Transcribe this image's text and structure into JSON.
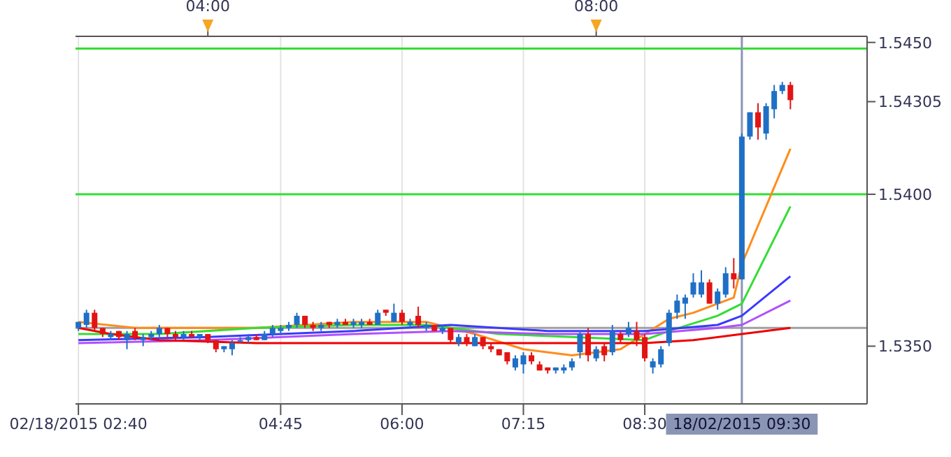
{
  "chart_data": {
    "type": "candlestick",
    "x": [
      2.6667,
      2.75,
      2.8333,
      2.9167,
      3,
      3.0833,
      3.1667,
      3.25,
      3.3333,
      3.4167,
      3.5,
      3.5833,
      3.6667,
      3.75,
      3.8333,
      3.9167,
      4,
      4.0833,
      4.1667,
      4.25,
      4.3333,
      4.4167,
      4.5,
      4.5833,
      4.6667,
      4.75,
      4.8333,
      4.9167,
      5,
      5.0833,
      5.1667,
      5.25,
      5.3333,
      5.4167,
      5.5,
      5.5833,
      5.6667,
      5.75,
      5.8333,
      5.9167,
      6,
      6.0833,
      6.1667,
      6.25,
      6.3333,
      6.4167,
      6.5,
      6.5833,
      6.6667,
      6.75,
      6.8333,
      6.9167,
      7,
      7.0833,
      7.1667,
      7.25,
      7.3333,
      7.4167,
      7.5,
      7.5833,
      7.6667,
      7.75,
      7.8333,
      7.9167,
      8,
      8.0833,
      8.1667,
      8.25,
      8.3333,
      8.4167,
      8.5,
      8.5833,
      8.6667,
      8.75,
      8.8333,
      8.9167,
      9,
      9.0833,
      9.1667,
      9.25,
      9.3333,
      9.4167,
      9.5,
      9.5833,
      9.6667,
      9.75,
      9.8333,
      9.9167,
      10
    ],
    "ohlc": [
      [
        1.5356,
        1.5358,
        1.5355,
        1.5358
      ],
      [
        1.5357,
        1.5362,
        1.5356,
        1.5361
      ],
      [
        1.5361,
        1.5362,
        1.5355,
        1.5356
      ],
      [
        1.5356,
        1.5356,
        1.5353,
        1.5354
      ],
      [
        1.5353,
        1.5355,
        1.5352,
        1.5354
      ],
      [
        1.5355,
        1.5355,
        1.5352,
        1.5353
      ],
      [
        1.5352,
        1.5355,
        1.5349,
        1.5354
      ],
      [
        1.5355,
        1.5356,
        1.5352,
        1.5353
      ],
      [
        1.5352,
        1.5354,
        1.535,
        1.5353
      ],
      [
        1.5353,
        1.5355,
        1.5352,
        1.5354
      ],
      [
        1.5354,
        1.5357,
        1.5353,
        1.5356
      ],
      [
        1.5356,
        1.5356,
        1.5353,
        1.5354
      ],
      [
        1.5354,
        1.5355,
        1.5352,
        1.5353
      ],
      [
        1.5353,
        1.5355,
        1.5352,
        1.5354
      ],
      [
        1.5354,
        1.5355,
        1.5353,
        1.5353
      ],
      [
        1.5353,
        1.5354,
        1.5352,
        1.5354
      ],
      [
        1.5354,
        1.5354,
        1.5351,
        1.5352
      ],
      [
        1.5352,
        1.5352,
        1.5348,
        1.5349
      ],
      [
        1.5349,
        1.535,
        1.5348,
        1.535
      ],
      [
        1.5349,
        1.5352,
        1.5347,
        1.5351
      ],
      [
        1.5352,
        1.5353,
        1.5351,
        1.5352
      ],
      [
        1.5352,
        1.5354,
        1.5351,
        1.5353
      ],
      [
        1.5353,
        1.5354,
        1.5352,
        1.5352
      ],
      [
        1.5352,
        1.5355,
        1.5352,
        1.5354
      ],
      [
        1.5354,
        1.5357,
        1.5353,
        1.5356
      ],
      [
        1.5355,
        1.5357,
        1.5354,
        1.5356
      ],
      [
        1.5356,
        1.5358,
        1.5355,
        1.5357
      ],
      [
        1.5357,
        1.5361,
        1.5356,
        1.536
      ],
      [
        1.536,
        1.536,
        1.5356,
        1.5357
      ],
      [
        1.5357,
        1.5358,
        1.5355,
        1.5356
      ],
      [
        1.5356,
        1.5358,
        1.5355,
        1.5357
      ],
      [
        1.5358,
        1.5358,
        1.5356,
        1.5357
      ],
      [
        1.5357,
        1.5359,
        1.5356,
        1.5358
      ],
      [
        1.5358,
        1.5359,
        1.5357,
        1.5357
      ],
      [
        1.5357,
        1.5359,
        1.5356,
        1.5358
      ],
      [
        1.5357,
        1.5359,
        1.5356,
        1.5358
      ],
      [
        1.5358,
        1.5359,
        1.5357,
        1.5357
      ],
      [
        1.5357,
        1.5362,
        1.5357,
        1.5361
      ],
      [
        1.5362,
        1.5362,
        1.536,
        1.5361
      ],
      [
        1.5358,
        1.5364,
        1.5358,
        1.5361
      ],
      [
        1.5361,
        1.5362,
        1.5357,
        1.5358
      ],
      [
        1.5357,
        1.5359,
        1.5356,
        1.5358
      ],
      [
        1.536,
        1.5363,
        1.5356,
        1.5357
      ],
      [
        1.5356,
        1.5358,
        1.5355,
        1.5357
      ],
      [
        1.5357,
        1.5357,
        1.5355,
        1.5355
      ],
      [
        1.5355,
        1.5357,
        1.5354,
        1.5356
      ],
      [
        1.5356,
        1.5356,
        1.5351,
        1.5352
      ],
      [
        1.5351,
        1.5354,
        1.535,
        1.5353
      ],
      [
        1.5353,
        1.5354,
        1.535,
        1.5351
      ],
      [
        1.535,
        1.5354,
        1.535,
        1.5353
      ],
      [
        1.5353,
        1.5353,
        1.5349,
        1.535
      ],
      [
        1.535,
        1.5351,
        1.5348,
        1.5349
      ],
      [
        1.5349,
        1.5349,
        1.5347,
        1.5347
      ],
      [
        1.5348,
        1.5348,
        1.5344,
        1.5345
      ],
      [
        1.5343,
        1.5347,
        1.5342,
        1.5346
      ],
      [
        1.5344,
        1.5348,
        1.5341,
        1.5347
      ],
      [
        1.5347,
        1.5348,
        1.5344,
        1.5345
      ],
      [
        1.5344,
        1.5345,
        1.5342,
        1.5342
      ],
      [
        1.5343,
        1.5343,
        1.5341,
        1.5342
      ],
      [
        1.5342,
        1.5343,
        1.5341,
        1.5343
      ],
      [
        1.5342,
        1.5344,
        1.5341,
        1.5343
      ],
      [
        1.5343,
        1.5346,
        1.5342,
        1.5345
      ],
      [
        1.5348,
        1.5355,
        1.5346,
        1.5354
      ],
      [
        1.5354,
        1.5356,
        1.5345,
        1.5347
      ],
      [
        1.5346,
        1.535,
        1.5345,
        1.5349
      ],
      [
        1.535,
        1.5351,
        1.5345,
        1.5347
      ],
      [
        1.5348,
        1.5357,
        1.5347,
        1.5355
      ],
      [
        1.5354,
        1.5355,
        1.5351,
        1.5352
      ],
      [
        1.5354,
        1.5358,
        1.5353,
        1.5356
      ],
      [
        1.5355,
        1.5358,
        1.535,
        1.5352
      ],
      [
        1.5353,
        1.5354,
        1.5345,
        1.5346
      ],
      [
        1.5343,
        1.5346,
        1.5341,
        1.5345
      ],
      [
        1.5344,
        1.535,
        1.5343,
        1.5349
      ],
      [
        1.5351,
        1.5362,
        1.535,
        1.5361
      ],
      [
        1.5361,
        1.5367,
        1.5359,
        1.5365
      ],
      [
        1.5364,
        1.5367,
        1.5359,
        1.5366
      ],
      [
        1.5367,
        1.5374,
        1.5366,
        1.5371
      ],
      [
        1.5367,
        1.5375,
        1.5366,
        1.5371
      ],
      [
        1.5371,
        1.5372,
        1.5364,
        1.5364
      ],
      [
        1.5364,
        1.5369,
        1.5362,
        1.5368
      ],
      [
        1.5367,
        1.5376,
        1.5366,
        1.5374
      ],
      [
        1.5374,
        1.5379,
        1.5369,
        1.5372
      ],
      [
        1.5372,
        1.542,
        1.5372,
        1.5419
      ],
      [
        1.5419,
        1.5427,
        1.5418,
        1.5427
      ],
      [
        1.5427,
        1.543,
        1.5418,
        1.5422
      ],
      [
        1.542,
        1.543,
        1.5418,
        1.5429
      ],
      [
        1.5428,
        1.5436,
        1.5425,
        1.5434
      ],
      [
        1.5434,
        1.5437,
        1.5433,
        1.5436
      ],
      [
        1.5436,
        1.5437,
        1.5428,
        1.5431
      ]
    ],
    "series": [
      {
        "type": "line",
        "color": "#ff8c1a",
        "x": [
          2.6667,
          3.25,
          4.5,
          5.5,
          6.25,
          6.75,
          7.25,
          7.75,
          8.25,
          8.5,
          8.75,
          9,
          9.4167,
          9.5,
          10
        ],
        "values": [
          1.5358,
          1.5356,
          1.5356,
          1.5358,
          1.5358,
          1.5354,
          1.5349,
          1.5347,
          1.5349,
          1.5354,
          1.5359,
          1.5361,
          1.5366,
          1.5377,
          1.5415
        ]
      },
      {
        "type": "line",
        "color": "#33dd33",
        "x": [
          2.6667,
          3.5,
          4.5,
          5.5,
          6.25,
          7,
          7.75,
          8.5,
          8.75,
          9.25,
          9.5,
          10
        ],
        "values": [
          1.5354,
          1.5354,
          1.5356,
          1.5357,
          1.5357,
          1.5354,
          1.5353,
          1.5352,
          1.5355,
          1.536,
          1.5364,
          1.5396
        ]
      },
      {
        "type": "line",
        "color": "#3a3aff",
        "x": [
          2.6667,
          4,
          5.5,
          6.5,
          7.5,
          8.5,
          9.25,
          9.5,
          10
        ],
        "values": [
          1.5352,
          1.5353,
          1.5355,
          1.5357,
          1.5355,
          1.5355,
          1.5357,
          1.536,
          1.5373
        ]
      },
      {
        "type": "line",
        "color": "#b050ff",
        "x": [
          2.6667,
          4,
          5.5,
          6.5,
          7.5,
          8.5,
          9.25,
          9.5,
          10
        ],
        "values": [
          1.5351,
          1.5352,
          1.5354,
          1.5355,
          1.5354,
          1.5354,
          1.5356,
          1.5357,
          1.5365
        ]
      },
      {
        "type": "line",
        "color": "#ee0000",
        "x": [
          2.6667,
          3,
          3.5,
          4.5,
          6,
          7.5,
          8.5,
          9,
          9.5,
          10
        ],
        "values": [
          1.5356,
          1.5354,
          1.5352,
          1.5351,
          1.5351,
          1.5351,
          1.5351,
          1.5352,
          1.5354,
          1.5356
        ]
      }
    ],
    "xlim": [
      2.637,
      10.79
    ],
    "xticks": [
      {
        "value": 2.6667,
        "label": "02/18/2015 02:40"
      },
      {
        "value": 4.75,
        "label": "04:45"
      },
      {
        "value": 6,
        "label": "06:00"
      },
      {
        "value": 7.25,
        "label": "07:15"
      },
      {
        "value": 8.5,
        "label": "08:30"
      }
    ],
    "x2lim": [
      2.637,
      10.79
    ],
    "x2ticks": [
      {
        "value": 4,
        "label": "04:00"
      },
      {
        "value": 8,
        "label": "08:00"
      }
    ],
    "ylim": [
      1.5331,
      1.5452
    ],
    "yticks": [
      {
        "value": 1.535,
        "label": "1.5350"
      },
      {
        "value": 1.54,
        "label": "1.5400"
      },
      {
        "value": 1.54305,
        "label": "1.54305"
      },
      {
        "value": 1.545,
        "label": "1.5450"
      }
    ],
    "ref_lines": [
      {
        "axis": "y",
        "value": 1.5448,
        "color": "#33dd33"
      },
      {
        "axis": "y",
        "value": 1.54,
        "color": "#33dd33"
      },
      {
        "axis": "y",
        "value": 1.5356,
        "color": "#a0a0a0"
      },
      {
        "axis": "x",
        "value": 9.5,
        "color": "#8a95b5",
        "label": "18/02/2015 09:30"
      }
    ],
    "grid": "x"
  }
}
